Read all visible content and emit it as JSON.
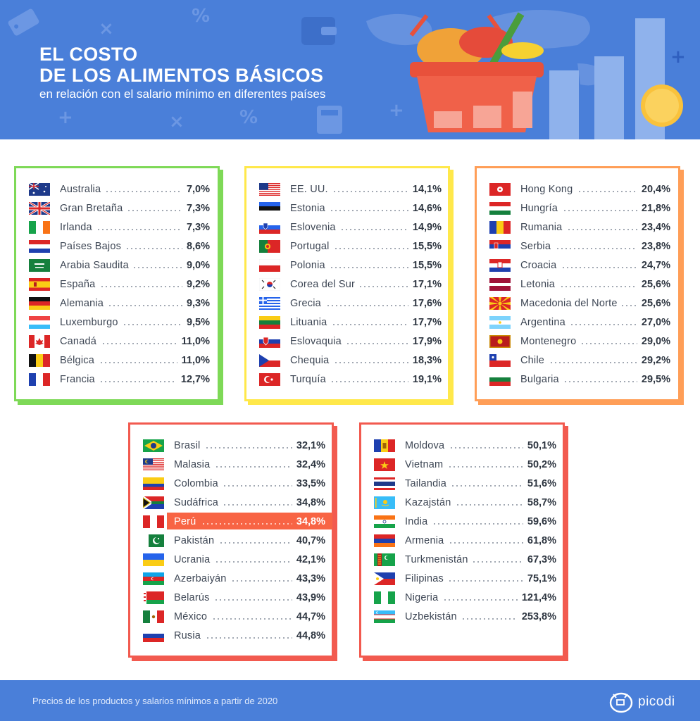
{
  "header": {
    "title_line1": "EL COSTO",
    "title_line2": "DE LOS ALIMENTOS BÁSICOS",
    "subtitle": "en relación con el salario mínimo en diferentes países"
  },
  "footer": {
    "note": "Precios de los productos y salarios mínimos a partir de 2020",
    "brand": "picodi"
  },
  "colors": {
    "header_bg": "#4a7fd9",
    "green": "#7ed957",
    "yellow": "#ffe84a",
    "orange": "#ff9e57",
    "red": "#f25a4f",
    "highlight": "#f86444"
  },
  "cards": [
    {
      "name": "card-green",
      "items": [
        {
          "country": "Australia",
          "value": "7,0%",
          "flag": "au"
        },
        {
          "country": "Gran Bretaña",
          "value": "7,3%",
          "flag": "gb"
        },
        {
          "country": "Irlanda",
          "value": "7,3%",
          "flag": "ie"
        },
        {
          "country": "Países Bajos",
          "value": "8,6%",
          "flag": "nl"
        },
        {
          "country": "Arabia Saudita",
          "value": "9,0%",
          "flag": "sa"
        },
        {
          "country": "España",
          "value": "9,2%",
          "flag": "es"
        },
        {
          "country": "Alemania",
          "value": "9,3%",
          "flag": "de"
        },
        {
          "country": "Luxemburgo",
          "value": "9,5%",
          "flag": "lu"
        },
        {
          "country": "Canadá",
          "value": "11,0%",
          "flag": "ca"
        },
        {
          "country": "Bélgica",
          "value": "11,0%",
          "flag": "be"
        },
        {
          "country": "Francia",
          "value": "12,7%",
          "flag": "fr"
        }
      ]
    },
    {
      "name": "card-yellow",
      "items": [
        {
          "country": "EE. UU.",
          "value": "14,1%",
          "flag": "us"
        },
        {
          "country": "Estonia",
          "value": "14,6%",
          "flag": "ee"
        },
        {
          "country": "Eslovenia",
          "value": "14,9%",
          "flag": "si"
        },
        {
          "country": "Portugal",
          "value": "15,5%",
          "flag": "pt"
        },
        {
          "country": "Polonia",
          "value": "15,5%",
          "flag": "pl"
        },
        {
          "country": "Corea del Sur",
          "value": "17,1%",
          "flag": "kr"
        },
        {
          "country": "Grecia",
          "value": "17,6%",
          "flag": "gr"
        },
        {
          "country": "Lituania",
          "value": "17,7%",
          "flag": "lt"
        },
        {
          "country": "Eslovaquia",
          "value": "17,9%",
          "flag": "sk"
        },
        {
          "country": "Chequia",
          "value": "18,3%",
          "flag": "cz"
        },
        {
          "country": "Turquía",
          "value": "19,1%",
          "flag": "tr"
        }
      ]
    },
    {
      "name": "card-orange",
      "items": [
        {
          "country": "Hong Kong",
          "value": "20,4%",
          "flag": "hk"
        },
        {
          "country": "Hungría",
          "value": "21,8%",
          "flag": "hu"
        },
        {
          "country": "Rumania",
          "value": "23,4%",
          "flag": "ro"
        },
        {
          "country": "Serbia",
          "value": "23,8%",
          "flag": "rs"
        },
        {
          "country": "Croacia",
          "value": "24,7%",
          "flag": "hr"
        },
        {
          "country": "Letonia",
          "value": "25,6%",
          "flag": "lv"
        },
        {
          "country": "Macedonia del Norte",
          "value": "25,6%",
          "flag": "mk"
        },
        {
          "country": "Argentina",
          "value": "27,0%",
          "flag": "ar"
        },
        {
          "country": "Montenegro",
          "value": "29,0%",
          "flag": "me"
        },
        {
          "country": "Chile",
          "value": "29,2%",
          "flag": "cl"
        },
        {
          "country": "Bulgaria",
          "value": "29,5%",
          "flag": "bg"
        }
      ]
    },
    {
      "name": "card-red-left",
      "items": [
        {
          "country": "Brasil",
          "value": "32,1%",
          "flag": "br"
        },
        {
          "country": "Malasia",
          "value": "32,4%",
          "flag": "my"
        },
        {
          "country": "Colombia",
          "value": "33,5%",
          "flag": "co"
        },
        {
          "country": "Sudáfrica",
          "value": "34,8%",
          "flag": "za"
        },
        {
          "country": "Perú",
          "value": "34,8%",
          "flag": "pe",
          "highlight": true
        },
        {
          "country": "Pakistán",
          "value": "40,7%",
          "flag": "pk"
        },
        {
          "country": "Ucrania",
          "value": "42,1%",
          "flag": "ua"
        },
        {
          "country": "Azerbaiyán",
          "value": "43,3%",
          "flag": "az"
        },
        {
          "country": "Belarús",
          "value": "43,9%",
          "flag": "by"
        },
        {
          "country": "México",
          "value": "44,7%",
          "flag": "mx"
        },
        {
          "country": "Rusia",
          "value": "44,8%",
          "flag": "ru"
        }
      ]
    },
    {
      "name": "card-red-right",
      "items": [
        {
          "country": "Moldova",
          "value": "50,1%",
          "flag": "md"
        },
        {
          "country": "Vietnam",
          "value": "50,2%",
          "flag": "vn"
        },
        {
          "country": "Tailandia",
          "value": "51,6%",
          "flag": "th"
        },
        {
          "country": "Kazajstán",
          "value": "58,7%",
          "flag": "kz"
        },
        {
          "country": "India",
          "value": "59,6%",
          "flag": "in"
        },
        {
          "country": "Armenia",
          "value": "61,8%",
          "flag": "am"
        },
        {
          "country": "Turkmenistán",
          "value": "67,3%",
          "flag": "tm"
        },
        {
          "country": "Filipinas",
          "value": "75,1%",
          "flag": "ph"
        },
        {
          "country": "Nigeria",
          "value": "121,4%",
          "flag": "ng"
        },
        {
          "country": "Uzbekistán",
          "value": "253,8%",
          "flag": "uz"
        }
      ]
    }
  ]
}
